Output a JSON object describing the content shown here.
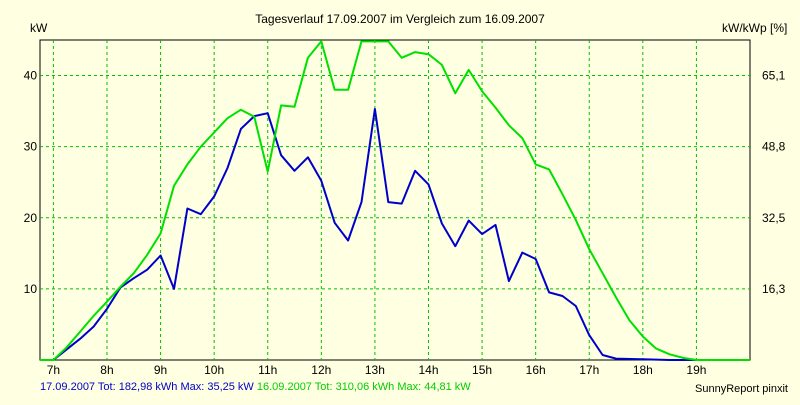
{
  "chart_data": {
    "type": "line",
    "title": "Tagesverlauf 17.09.2007 im Vergleich zum 16.09.2007",
    "ylabel": "kW",
    "y2label": "kW/kWp [%]",
    "xlim": [
      6.75,
      20.0
    ],
    "ylim": [
      0,
      45
    ],
    "yticks": [
      10,
      20,
      30,
      40
    ],
    "y2_tick_labels": [
      "16,3",
      "32,5",
      "48,8",
      "65,1"
    ],
    "x_tick_labels": [
      "7h",
      "8h",
      "9h",
      "10h",
      "11h",
      "12h",
      "13h",
      "14h",
      "15h",
      "16h",
      "17h",
      "18h",
      "19h"
    ],
    "x_ticks": [
      7,
      8,
      9,
      10,
      11,
      12,
      13,
      14,
      15,
      16,
      17,
      18,
      19
    ],
    "grid": true,
    "series": [
      {
        "name": "17.09.2007",
        "color": "#0000cc",
        "x": [
          6.75,
          7.0,
          7.25,
          7.5,
          7.75,
          8.0,
          8.25,
          8.5,
          8.75,
          9.0,
          9.25,
          9.5,
          9.75,
          10.0,
          10.25,
          10.5,
          10.75,
          11.0,
          11.25,
          11.5,
          11.75,
          12.0,
          12.25,
          12.5,
          12.75,
          13.0,
          13.25,
          13.5,
          13.75,
          14.0,
          14.25,
          14.5,
          14.75,
          15.0,
          15.25,
          15.5,
          15.75,
          16.0,
          16.25,
          16.5,
          16.75,
          17.0,
          17.25,
          17.5,
          18.0,
          18.5,
          19.0,
          19.5,
          20.0
        ],
        "values": [
          0,
          0,
          1.5,
          3,
          4.7,
          7.2,
          10.2,
          11.5,
          12.7,
          14.7,
          10,
          21.3,
          20.5,
          23,
          27,
          32.5,
          34.3,
          34.7,
          28.8,
          26.6,
          28.5,
          25.2,
          19.3,
          16.8,
          22.2,
          35.3,
          22.2,
          22,
          26.6,
          24.7,
          19.2,
          16,
          19.6,
          17.7,
          19,
          11.1,
          15.1,
          14.2,
          9.5,
          9,
          7.6,
          3.5,
          0.7,
          0.2,
          0.1,
          0,
          0,
          0,
          0
        ]
      },
      {
        "name": "16.09.2007",
        "color": "#00e000",
        "x": [
          6.75,
          7.0,
          7.25,
          7.5,
          7.75,
          8.0,
          8.25,
          8.5,
          8.75,
          9.0,
          9.25,
          9.5,
          9.75,
          10.0,
          10.25,
          10.5,
          10.75,
          11.0,
          11.25,
          11.5,
          11.75,
          12.0,
          12.25,
          12.5,
          12.75,
          13.0,
          13.25,
          13.5,
          13.75,
          14.0,
          14.25,
          14.5,
          14.75,
          15.0,
          15.25,
          15.5,
          15.75,
          16.0,
          16.25,
          16.5,
          16.75,
          17.0,
          17.25,
          17.5,
          17.75,
          18.0,
          18.25,
          18.5,
          18.75,
          19.0,
          19.25,
          19.5,
          19.75,
          20.0
        ],
        "values": [
          0,
          0,
          1.8,
          4,
          6.2,
          8.2,
          10.3,
          12.2,
          14.8,
          17.8,
          24.5,
          27.5,
          30,
          32,
          34,
          35.2,
          34.2,
          26.5,
          35.8,
          35.6,
          42.5,
          44.8,
          38,
          38,
          44.8,
          44.8,
          44.8,
          42.5,
          43.3,
          43.0,
          41.5,
          37.5,
          40.8,
          37.8,
          35.5,
          33,
          31.2,
          27.5,
          26.8,
          23.3,
          19.7,
          15.6,
          12.2,
          8.8,
          5.6,
          3.3,
          1.6,
          0.8,
          0.3,
          0,
          0,
          0,
          0,
          0
        ]
      }
    ],
    "footer": {
      "s1_text": "17.09.2007 Tot: 182,98 kWh Max: 35,25 kW",
      "s2_text": "16.09.2007 Tot: 310,06 kWh Max: 44,81 kW",
      "credit": "SunnyReport pinxit"
    }
  }
}
